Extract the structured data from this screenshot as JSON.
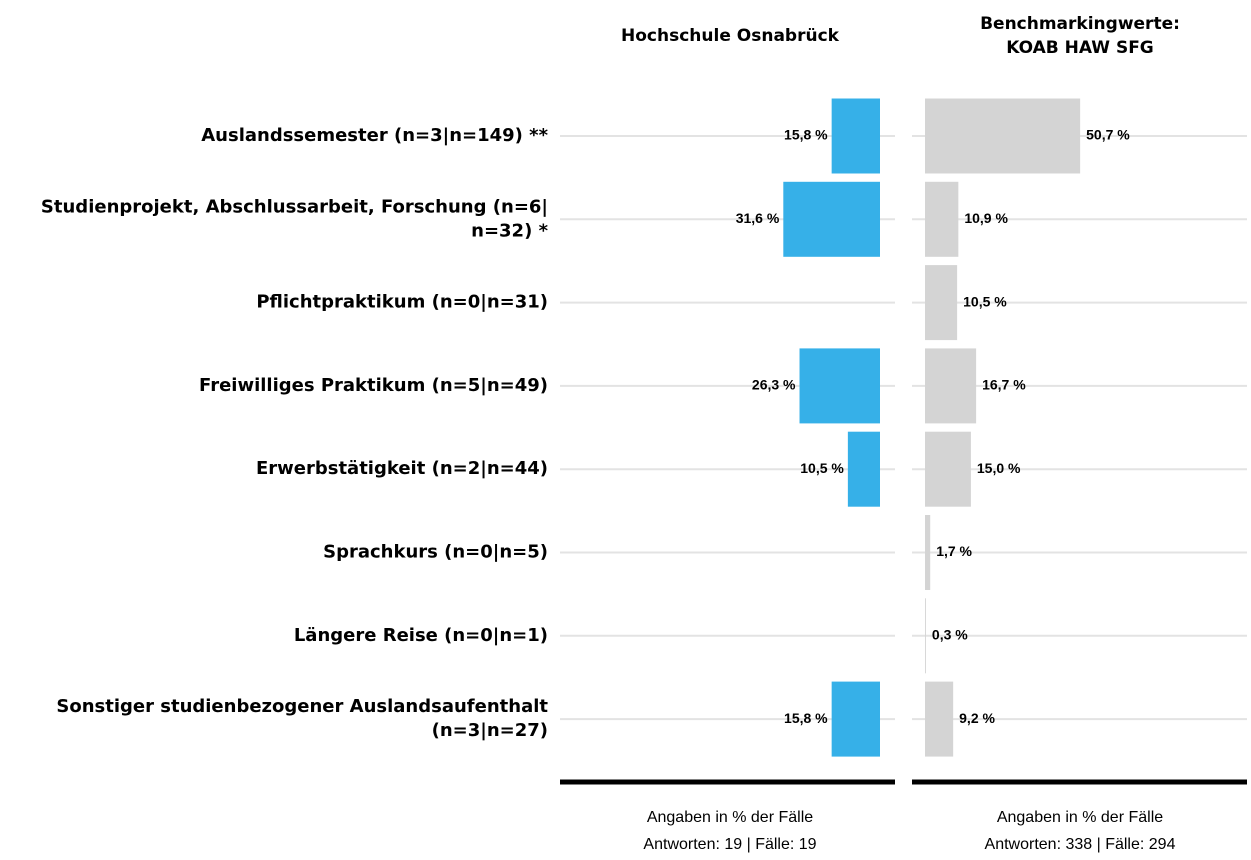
{
  "chart_data": {
    "type": "bar",
    "orientation": "horizontal",
    "categories": [
      [
        "Auslandssemester (n=3|n=149) **"
      ],
      [
        "Studienprojekt, Abschlussarbeit, Forschung (n=6|",
        "n=32) *"
      ],
      [
        "Pflichtpraktikum (n=0|n=31)"
      ],
      [
        "Freiwilliges Praktikum (n=5|n=49)"
      ],
      [
        "Erwerbstätigkeit (n=2|n=44)"
      ],
      [
        "Sprachkurs (n=0|n=5)"
      ],
      [
        "Längere Reise (n=0|n=1)"
      ],
      [
        "Sonstiger studienbezogener Auslandsaufenthalt",
        "(n=3|n=27)"
      ]
    ],
    "panels": [
      {
        "title": [
          "Hochschule Osnabrück"
        ],
        "color": "#36b0e8",
        "direction": "left",
        "values": [
          15.8,
          31.6,
          null,
          26.3,
          10.5,
          null,
          null,
          15.8
        ],
        "value_labels": [
          "15,8 %",
          "31,6 %",
          null,
          "26,3 %",
          "10,5 %",
          null,
          null,
          "15,8 %"
        ],
        "footer": [
          "Angaben in % der Fälle",
          "Antworten: 19 | Fälle: 19"
        ]
      },
      {
        "title": [
          "Benchmarkingwerte:",
          "KOAB HAW SFG"
        ],
        "color": "#d4d4d4",
        "direction": "right",
        "values": [
          50.7,
          10.9,
          10.5,
          16.7,
          15.0,
          1.7,
          0.3,
          9.2
        ],
        "value_labels": [
          "50,7 %",
          "10,9 %",
          "10,5 %",
          "16,7 %",
          "15,0 %",
          "1,7 %",
          "0,3 %",
          "9,2 %"
        ],
        "footer": [
          "Angaben in % der Fälle",
          "Antworten: 338 | Fälle: 294"
        ]
      }
    ]
  }
}
